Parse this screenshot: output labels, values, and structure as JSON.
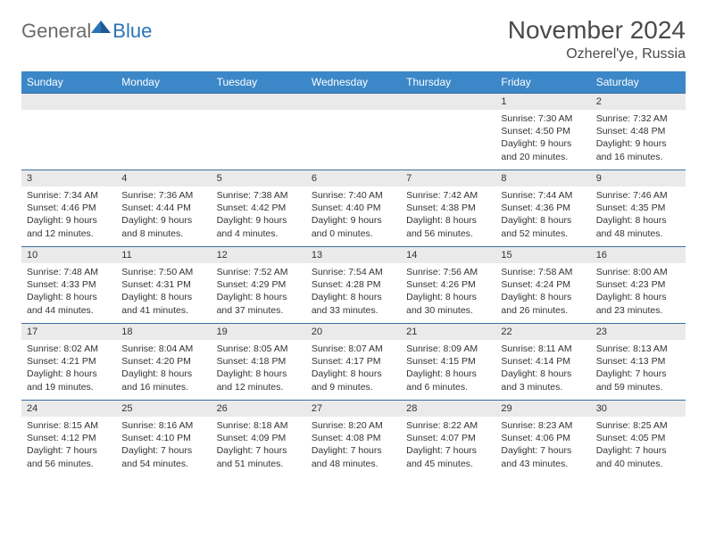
{
  "logo": {
    "general": "General",
    "blue": "Blue"
  },
  "title": "November 2024",
  "location": "Ozherel'ye, Russia",
  "colors": {
    "header_bg": "#3b87c8",
    "header_text": "#ffffff",
    "daynum_bg": "#eaeaea",
    "border": "#3b6fa0",
    "text": "#333333",
    "logo_gray": "#6b6b6b",
    "logo_blue": "#2a73b8"
  },
  "day_names": [
    "Sunday",
    "Monday",
    "Tuesday",
    "Wednesday",
    "Thursday",
    "Friday",
    "Saturday"
  ],
  "weeks": [
    [
      null,
      null,
      null,
      null,
      null,
      {
        "n": "1",
        "sunrise": "Sunrise: 7:30 AM",
        "sunset": "Sunset: 4:50 PM",
        "dl1": "Daylight: 9 hours",
        "dl2": "and 20 minutes."
      },
      {
        "n": "2",
        "sunrise": "Sunrise: 7:32 AM",
        "sunset": "Sunset: 4:48 PM",
        "dl1": "Daylight: 9 hours",
        "dl2": "and 16 minutes."
      }
    ],
    [
      {
        "n": "3",
        "sunrise": "Sunrise: 7:34 AM",
        "sunset": "Sunset: 4:46 PM",
        "dl1": "Daylight: 9 hours",
        "dl2": "and 12 minutes."
      },
      {
        "n": "4",
        "sunrise": "Sunrise: 7:36 AM",
        "sunset": "Sunset: 4:44 PM",
        "dl1": "Daylight: 9 hours",
        "dl2": "and 8 minutes."
      },
      {
        "n": "5",
        "sunrise": "Sunrise: 7:38 AM",
        "sunset": "Sunset: 4:42 PM",
        "dl1": "Daylight: 9 hours",
        "dl2": "and 4 minutes."
      },
      {
        "n": "6",
        "sunrise": "Sunrise: 7:40 AM",
        "sunset": "Sunset: 4:40 PM",
        "dl1": "Daylight: 9 hours",
        "dl2": "and 0 minutes."
      },
      {
        "n": "7",
        "sunrise": "Sunrise: 7:42 AM",
        "sunset": "Sunset: 4:38 PM",
        "dl1": "Daylight: 8 hours",
        "dl2": "and 56 minutes."
      },
      {
        "n": "8",
        "sunrise": "Sunrise: 7:44 AM",
        "sunset": "Sunset: 4:36 PM",
        "dl1": "Daylight: 8 hours",
        "dl2": "and 52 minutes."
      },
      {
        "n": "9",
        "sunrise": "Sunrise: 7:46 AM",
        "sunset": "Sunset: 4:35 PM",
        "dl1": "Daylight: 8 hours",
        "dl2": "and 48 minutes."
      }
    ],
    [
      {
        "n": "10",
        "sunrise": "Sunrise: 7:48 AM",
        "sunset": "Sunset: 4:33 PM",
        "dl1": "Daylight: 8 hours",
        "dl2": "and 44 minutes."
      },
      {
        "n": "11",
        "sunrise": "Sunrise: 7:50 AM",
        "sunset": "Sunset: 4:31 PM",
        "dl1": "Daylight: 8 hours",
        "dl2": "and 41 minutes."
      },
      {
        "n": "12",
        "sunrise": "Sunrise: 7:52 AM",
        "sunset": "Sunset: 4:29 PM",
        "dl1": "Daylight: 8 hours",
        "dl2": "and 37 minutes."
      },
      {
        "n": "13",
        "sunrise": "Sunrise: 7:54 AM",
        "sunset": "Sunset: 4:28 PM",
        "dl1": "Daylight: 8 hours",
        "dl2": "and 33 minutes."
      },
      {
        "n": "14",
        "sunrise": "Sunrise: 7:56 AM",
        "sunset": "Sunset: 4:26 PM",
        "dl1": "Daylight: 8 hours",
        "dl2": "and 30 minutes."
      },
      {
        "n": "15",
        "sunrise": "Sunrise: 7:58 AM",
        "sunset": "Sunset: 4:24 PM",
        "dl1": "Daylight: 8 hours",
        "dl2": "and 26 minutes."
      },
      {
        "n": "16",
        "sunrise": "Sunrise: 8:00 AM",
        "sunset": "Sunset: 4:23 PM",
        "dl1": "Daylight: 8 hours",
        "dl2": "and 23 minutes."
      }
    ],
    [
      {
        "n": "17",
        "sunrise": "Sunrise: 8:02 AM",
        "sunset": "Sunset: 4:21 PM",
        "dl1": "Daylight: 8 hours",
        "dl2": "and 19 minutes."
      },
      {
        "n": "18",
        "sunrise": "Sunrise: 8:04 AM",
        "sunset": "Sunset: 4:20 PM",
        "dl1": "Daylight: 8 hours",
        "dl2": "and 16 minutes."
      },
      {
        "n": "19",
        "sunrise": "Sunrise: 8:05 AM",
        "sunset": "Sunset: 4:18 PM",
        "dl1": "Daylight: 8 hours",
        "dl2": "and 12 minutes."
      },
      {
        "n": "20",
        "sunrise": "Sunrise: 8:07 AM",
        "sunset": "Sunset: 4:17 PM",
        "dl1": "Daylight: 8 hours",
        "dl2": "and 9 minutes."
      },
      {
        "n": "21",
        "sunrise": "Sunrise: 8:09 AM",
        "sunset": "Sunset: 4:15 PM",
        "dl1": "Daylight: 8 hours",
        "dl2": "and 6 minutes."
      },
      {
        "n": "22",
        "sunrise": "Sunrise: 8:11 AM",
        "sunset": "Sunset: 4:14 PM",
        "dl1": "Daylight: 8 hours",
        "dl2": "and 3 minutes."
      },
      {
        "n": "23",
        "sunrise": "Sunrise: 8:13 AM",
        "sunset": "Sunset: 4:13 PM",
        "dl1": "Daylight: 7 hours",
        "dl2": "and 59 minutes."
      }
    ],
    [
      {
        "n": "24",
        "sunrise": "Sunrise: 8:15 AM",
        "sunset": "Sunset: 4:12 PM",
        "dl1": "Daylight: 7 hours",
        "dl2": "and 56 minutes."
      },
      {
        "n": "25",
        "sunrise": "Sunrise: 8:16 AM",
        "sunset": "Sunset: 4:10 PM",
        "dl1": "Daylight: 7 hours",
        "dl2": "and 54 minutes."
      },
      {
        "n": "26",
        "sunrise": "Sunrise: 8:18 AM",
        "sunset": "Sunset: 4:09 PM",
        "dl1": "Daylight: 7 hours",
        "dl2": "and 51 minutes."
      },
      {
        "n": "27",
        "sunrise": "Sunrise: 8:20 AM",
        "sunset": "Sunset: 4:08 PM",
        "dl1": "Daylight: 7 hours",
        "dl2": "and 48 minutes."
      },
      {
        "n": "28",
        "sunrise": "Sunrise: 8:22 AM",
        "sunset": "Sunset: 4:07 PM",
        "dl1": "Daylight: 7 hours",
        "dl2": "and 45 minutes."
      },
      {
        "n": "29",
        "sunrise": "Sunrise: 8:23 AM",
        "sunset": "Sunset: 4:06 PM",
        "dl1": "Daylight: 7 hours",
        "dl2": "and 43 minutes."
      },
      {
        "n": "30",
        "sunrise": "Sunrise: 8:25 AM",
        "sunset": "Sunset: 4:05 PM",
        "dl1": "Daylight: 7 hours",
        "dl2": "and 40 minutes."
      }
    ]
  ]
}
